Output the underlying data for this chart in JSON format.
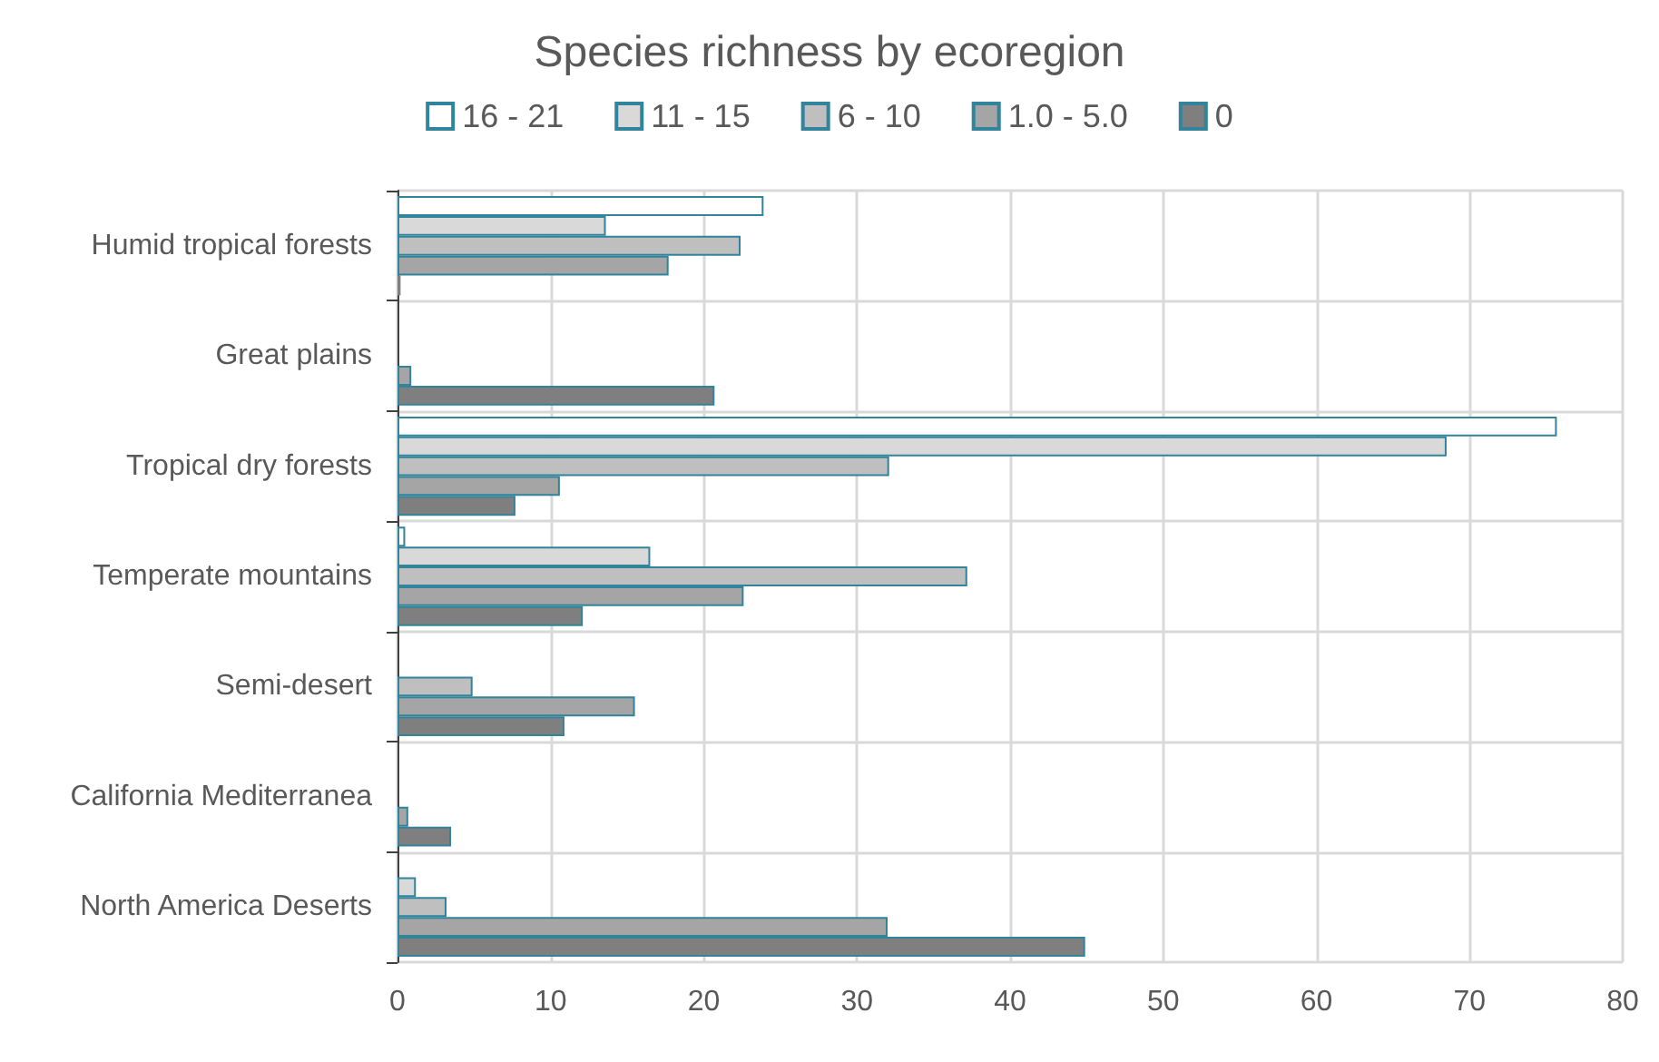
{
  "chart_data": {
    "type": "bar",
    "orientation": "horizontal",
    "title": "Species richness by ecoregion",
    "categories": [
      "Humid tropical forests",
      "Great plains",
      "Tropical dry forests",
      "Temperate mountains",
      "Semi-desert",
      "California Mediterranea",
      "North America Deserts"
    ],
    "series": [
      {
        "name": "16 - 21",
        "color": "#ffffff",
        "values": [
          23.9,
          0,
          75.7,
          0.5,
          0,
          0,
          0
        ]
      },
      {
        "name": "11 - 15",
        "color": "#d9d9d9",
        "values": [
          13.6,
          0,
          68.5,
          16.5,
          null,
          null,
          1.2
        ]
      },
      {
        "name": "6 - 10",
        "color": "#bfbfbf",
        "values": [
          22.4,
          null,
          32.1,
          37.2,
          4.9,
          null,
          3.2
        ]
      },
      {
        "name": "1.0 - 5.0",
        "color": "#a5a5a5",
        "values": [
          17.7,
          0.9,
          10.6,
          22.6,
          15.5,
          0.7,
          32.0
        ]
      },
      {
        "name": "0",
        "color": "#7f7f7f",
        "values": [
          0.2,
          20.7,
          7.7,
          12.1,
          10.9,
          3.5,
          44.9
        ]
      }
    ],
    "xlim": [
      0,
      80
    ],
    "xticks": [
      0,
      10,
      20,
      30,
      40,
      50,
      60,
      70,
      80
    ],
    "grid": true,
    "legend": "top"
  }
}
